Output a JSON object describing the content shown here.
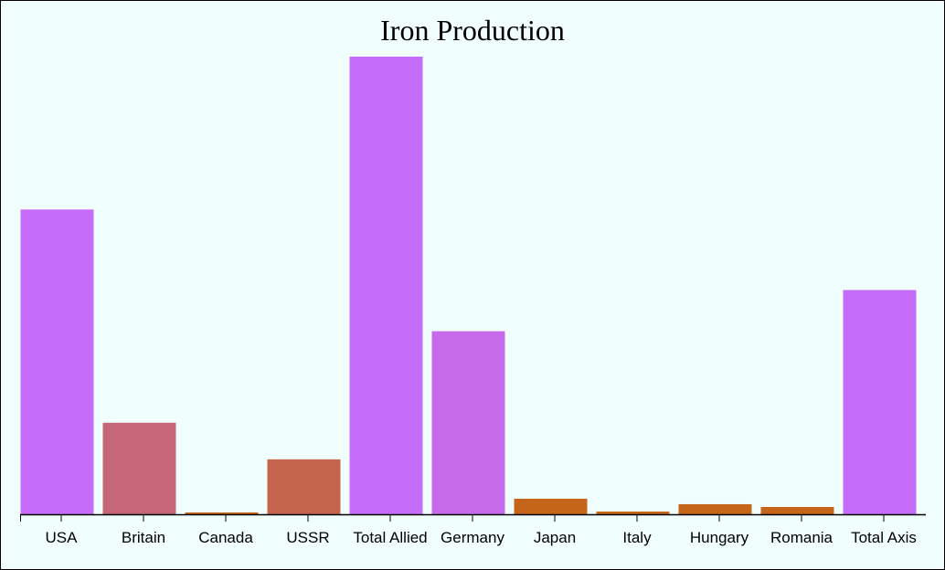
{
  "chart_data": {
    "type": "bar",
    "title": "Iron Production",
    "xlabel": "",
    "ylabel": "",
    "categories": [
      "USA",
      "Britain",
      "Canada",
      "USSR",
      "Total Allied",
      "Germany",
      "Japan",
      "Italy",
      "Hungary",
      "Romania",
      "Total Axis"
    ],
    "values": [
      333,
      100,
      2,
      60,
      500,
      200,
      17,
      3,
      11,
      8,
      245
    ],
    "colors": [
      "#c66cfb",
      "#c56778",
      "#c5651a",
      "#c5654d",
      "#c66cfb",
      "#c66ae9",
      "#c5651a",
      "#c5651a",
      "#c5651a",
      "#c5651a",
      "#c66cfb"
    ],
    "ylim": [
      0,
      500
    ],
    "grid": false,
    "legend": "none"
  }
}
